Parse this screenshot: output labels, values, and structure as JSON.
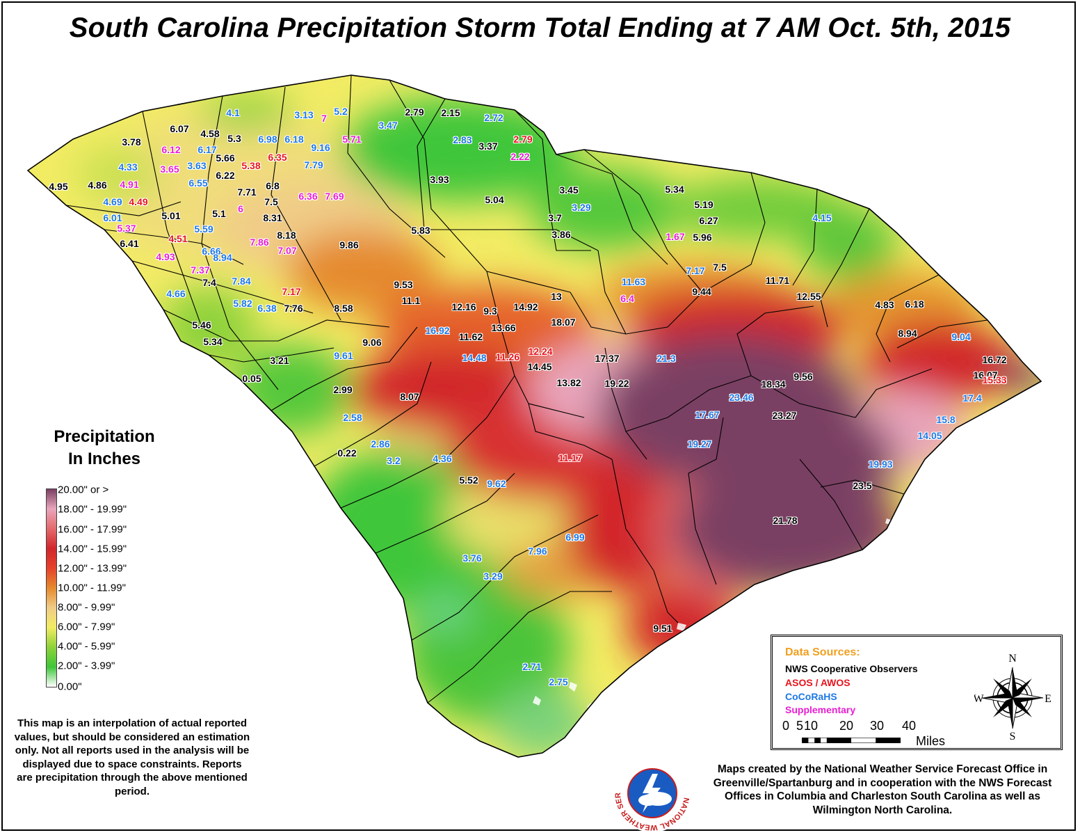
{
  "title": "South Carolina Precipitation Storm Total Ending at 7 AM Oct. 5th, 2015",
  "colors": {
    "nws_cooperative": "#000000",
    "asos_awos": "#e8141c",
    "cocorahs": "#1e78e6",
    "supplementary": "#e81ed2",
    "data_sources_heading": "#f0a020"
  },
  "legend": {
    "title_line1": "Precipitation",
    "title_line2": "In Inches",
    "classes": [
      {
        "label": "20.00\" or >",
        "color": "#7a3f63"
      },
      {
        "label": "18.00\" - 19.99\"",
        "color": "#e9a6bc"
      },
      {
        "label": "16.00\" - 17.99\"",
        "color": "#e46a6c"
      },
      {
        "label": "14.00\" - 15.99\"",
        "color": "#d2262b"
      },
      {
        "label": "12.00\" - 13.99\"",
        "color": "#e5422a"
      },
      {
        "label": "10.00\" - 11.99\"",
        "color": "#e58a2e"
      },
      {
        "label": "8.00\" - 9.99\"",
        "color": "#f0cc88"
      },
      {
        "label": "6.00\" - 7.99\"",
        "color": "#f2ec64"
      },
      {
        "label": "4.00\" - 5.99\"",
        "color": "#8ed23a"
      },
      {
        "label": "2.00\" - 3.99\"",
        "color": "#3fc63a"
      },
      {
        "label": "0.00\"",
        "color": "#ffffff"
      }
    ]
  },
  "disclaimer": "This map is an interpolation of actual reported values, but should be considered an estimation only. Not all reports used in the analysis will be displayed due to space constraints. Reports are precipitation through the above mentioned period.",
  "credits": "Maps created by the National Weather Service Forecast Office in Greenville/Spartanburg and in cooperation with the NWS Forecast Offices in Columbia and Charleston South Carolina as well as Wilmington North Carolina.",
  "data_sources": {
    "heading": "Data Sources:",
    "items": [
      {
        "label": "NWS Cooperative Observers",
        "source": "nws_cooperative"
      },
      {
        "label": "ASOS / AWOS",
        "source": "asos_awos"
      },
      {
        "label": "CoCoRaHS",
        "source": "cocorahs"
      },
      {
        "label": "Supplementary",
        "source": "supplementary"
      }
    ]
  },
  "scale_bar": {
    "ticks": [
      "0",
      "5",
      "10",
      "20",
      "30",
      "40"
    ],
    "unit": "Miles"
  },
  "compass": {
    "n": "N",
    "s": "S",
    "e": "E",
    "w": "W"
  },
  "nws_logo": {
    "icon": "nws-logo-icon",
    "text": "NATIONAL WEATHER SERVICE"
  },
  "map_icon": "south-carolina-map",
  "reports": [
    {
      "v": "4.1",
      "s": "cocorahs"
    },
    {
      "v": "3.13",
      "s": "cocorahs"
    },
    {
      "v": "7",
      "s": "supplementary"
    },
    {
      "v": "5.2",
      "s": "cocorahs"
    },
    {
      "v": "2.79",
      "s": "nws_cooperative"
    },
    {
      "v": "2.15",
      "s": "nws_cooperative"
    },
    {
      "v": "2.72",
      "s": "cocorahs"
    },
    {
      "v": "3.47",
      "s": "cocorahs"
    },
    {
      "v": "6.07",
      "s": "nws_cooperative"
    },
    {
      "v": "4.58",
      "s": "nws_cooperative"
    },
    {
      "v": "5.3",
      "s": "nws_cooperative"
    },
    {
      "v": "6.98",
      "s": "cocorahs"
    },
    {
      "v": "6.18",
      "s": "cocorahs"
    },
    {
      "v": "9.16",
      "s": "cocorahs"
    },
    {
      "v": "5.71",
      "s": "supplementary"
    },
    {
      "v": "2.83",
      "s": "cocorahs"
    },
    {
      "v": "3.37",
      "s": "nws_cooperative"
    },
    {
      "v": "2.79",
      "s": "asos_awos"
    },
    {
      "v": "2.22",
      "s": "supplementary"
    },
    {
      "v": "3.78",
      "s": "nws_cooperative"
    },
    {
      "v": "6.12",
      "s": "supplementary"
    },
    {
      "v": "6.17",
      "s": "cocorahs"
    },
    {
      "v": "5.66",
      "s": "nws_cooperative"
    },
    {
      "v": "5.38",
      "s": "asos_awos"
    },
    {
      "v": "6.35",
      "s": "asos_awos"
    },
    {
      "v": "7.79",
      "s": "cocorahs"
    },
    {
      "v": "4.33",
      "s": "cocorahs"
    },
    {
      "v": "3.65",
      "s": "supplementary"
    },
    {
      "v": "3.63",
      "s": "cocorahs"
    },
    {
      "v": "6.22",
      "s": "nws_cooperative"
    },
    {
      "v": "3.93",
      "s": "nws_cooperative"
    },
    {
      "v": "4.95",
      "s": "nws_cooperative"
    },
    {
      "v": "4.86",
      "s": "nws_cooperative"
    },
    {
      "v": "4.91",
      "s": "supplementary"
    },
    {
      "v": "6.55",
      "s": "cocorahs"
    },
    {
      "v": "7.71",
      "s": "nws_cooperative"
    },
    {
      "v": "6.8",
      "s": "nws_cooperative"
    },
    {
      "v": "6.36",
      "s": "supplementary"
    },
    {
      "v": "7.69",
      "s": "supplementary"
    },
    {
      "v": "5.04",
      "s": "nws_cooperative"
    },
    {
      "v": "3.45",
      "s": "nws_cooperative"
    },
    {
      "v": "5.34",
      "s": "nws_cooperative"
    },
    {
      "v": "4.69",
      "s": "cocorahs"
    },
    {
      "v": "4.49",
      "s": "asos_awos"
    },
    {
      "v": "7.5",
      "s": "nws_cooperative"
    },
    {
      "v": "6",
      "s": "supplementary"
    },
    {
      "v": "5.19",
      "s": "nws_cooperative"
    },
    {
      "v": "3.29",
      "s": "cocorahs"
    },
    {
      "v": "6.01",
      "s": "cocorahs"
    },
    {
      "v": "5.01",
      "s": "nws_cooperative"
    },
    {
      "v": "5.1",
      "s": "nws_cooperative"
    },
    {
      "v": "8.31",
      "s": "nws_cooperative"
    },
    {
      "v": "3.7",
      "s": "nws_cooperative"
    },
    {
      "v": "6.27",
      "s": "nws_cooperative"
    },
    {
      "v": "4.15",
      "s": "cocorahs"
    },
    {
      "v": "5.37",
      "s": "supplementary"
    },
    {
      "v": "5.59",
      "s": "cocorahs"
    },
    {
      "v": "5.83",
      "s": "nws_cooperative"
    },
    {
      "v": "8.18",
      "s": "nws_cooperative"
    },
    {
      "v": "3.86",
      "s": "nws_cooperative"
    },
    {
      "v": "6.41",
      "s": "nws_cooperative"
    },
    {
      "v": "4.51",
      "s": "asos_awos"
    },
    {
      "v": "6.66",
      "s": "cocorahs"
    },
    {
      "v": "7.86",
      "s": "supplementary"
    },
    {
      "v": "7.07",
      "s": "supplementary"
    },
    {
      "v": "9.86",
      "s": "nws_cooperative"
    },
    {
      "v": "1.67",
      "s": "supplementary"
    },
    {
      "v": "5.96",
      "s": "nws_cooperative"
    },
    {
      "v": "4.93",
      "s": "supplementary"
    },
    {
      "v": "7.37",
      "s": "supplementary"
    },
    {
      "v": "8.94",
      "s": "cocorahs"
    },
    {
      "v": "7.17",
      "s": "cocorahs"
    },
    {
      "v": "7.5",
      "s": "nws_cooperative"
    },
    {
      "v": "7.4",
      "s": "nws_cooperative"
    },
    {
      "v": "7.84",
      "s": "cocorahs"
    },
    {
      "v": "9.53",
      "s": "nws_cooperative"
    },
    {
      "v": "11.63",
      "s": "cocorahs"
    },
    {
      "v": "11.71",
      "s": "nws_cooperative"
    },
    {
      "v": "4.66",
      "s": "cocorahs"
    },
    {
      "v": "7.17",
      "s": "asos_awos"
    },
    {
      "v": "11.1",
      "s": "nws_cooperative"
    },
    {
      "v": "13",
      "s": "nws_cooperative"
    },
    {
      "v": "9.44",
      "s": "nws_cooperative"
    },
    {
      "v": "12.55",
      "s": "nws_cooperative"
    },
    {
      "v": "5.82",
      "s": "cocorahs"
    },
    {
      "v": "6.38",
      "s": "cocorahs"
    },
    {
      "v": "7.76",
      "s": "nws_cooperative"
    },
    {
      "v": "12.16",
      "s": "nws_cooperative"
    },
    {
      "v": "9.3",
      "s": "nws_cooperative"
    },
    {
      "v": "14.92",
      "s": "nws_cooperative"
    },
    {
      "v": "6.4",
      "s": "supplementary"
    },
    {
      "v": "4.83",
      "s": "nws_cooperative"
    },
    {
      "v": "6.18",
      "s": "nws_cooperative"
    },
    {
      "v": "8.58",
      "s": "nws_cooperative"
    },
    {
      "v": "18.07",
      "s": "nws_cooperative"
    },
    {
      "v": "5.46",
      "s": "nws_cooperative"
    },
    {
      "v": "13.66",
      "s": "nws_cooperative"
    },
    {
      "v": "16.92",
      "s": "cocorahs"
    },
    {
      "v": "11.62",
      "s": "nws_cooperative"
    },
    {
      "v": "5.34",
      "s": "nws_cooperative"
    },
    {
      "v": "9.06",
      "s": "nws_cooperative"
    },
    {
      "v": "8.94",
      "s": "nws_cooperative"
    },
    {
      "v": "9.04",
      "s": "cocorahs"
    },
    {
      "v": "3.21",
      "s": "nws_cooperative"
    },
    {
      "v": "12.24",
      "s": "asos_awos"
    },
    {
      "v": "14.48",
      "s": "cocorahs"
    },
    {
      "v": "11.26",
      "s": "asos_awos"
    },
    {
      "v": "17.37",
      "s": "nws_cooperative"
    },
    {
      "v": "21.3",
      "s": "cocorahs"
    },
    {
      "v": "9.61",
      "s": "cocorahs"
    },
    {
      "v": "14.45",
      "s": "nws_cooperative"
    },
    {
      "v": "16.72",
      "s": "nws_cooperative"
    },
    {
      "v": "0.05",
      "s": "nws_cooperative"
    },
    {
      "v": "13.82",
      "s": "nws_cooperative"
    },
    {
      "v": "19.22",
      "s": "nws_cooperative"
    },
    {
      "v": "9.56",
      "s": "nws_cooperative"
    },
    {
      "v": "16.07",
      "s": "nws_cooperative"
    },
    {
      "v": "15.33",
      "s": "asos_awos"
    },
    {
      "v": "2.99",
      "s": "nws_cooperative"
    },
    {
      "v": "8.07",
      "s": "nws_cooperative"
    },
    {
      "v": "18.34",
      "s": "nws_cooperative"
    },
    {
      "v": "23.46",
      "s": "cocorahs"
    },
    {
      "v": "17.4",
      "s": "cocorahs"
    },
    {
      "v": "2.58",
      "s": "cocorahs"
    },
    {
      "v": "17.67",
      "s": "cocorahs"
    },
    {
      "v": "23.27",
      "s": "nws_cooperative"
    },
    {
      "v": "15.8",
      "s": "cocorahs"
    },
    {
      "v": "2.86",
      "s": "cocorahs"
    },
    {
      "v": "14.05",
      "s": "cocorahs"
    },
    {
      "v": "0.22",
      "s": "nws_cooperative"
    },
    {
      "v": "3.2",
      "s": "cocorahs"
    },
    {
      "v": "19.27",
      "s": "cocorahs"
    },
    {
      "v": "4.36",
      "s": "cocorahs"
    },
    {
      "v": "11.17",
      "s": "asos_awos"
    },
    {
      "v": "19.93",
      "s": "cocorahs"
    },
    {
      "v": "5.52",
      "s": "nws_cooperative"
    },
    {
      "v": "9.62",
      "s": "cocorahs"
    },
    {
      "v": "23.5",
      "s": "nws_cooperative"
    },
    {
      "v": "21.78",
      "s": "nws_cooperative"
    },
    {
      "v": "6.99",
      "s": "cocorahs"
    },
    {
      "v": "7.96",
      "s": "cocorahs"
    },
    {
      "v": "3.76",
      "s": "cocorahs"
    },
    {
      "v": "3.29",
      "s": "cocorahs"
    },
    {
      "v": "9.51",
      "s": "nws_cooperative"
    },
    {
      "v": "2.71",
      "s": "cocorahs"
    },
    {
      "v": "2.75",
      "s": "cocorahs"
    }
  ]
}
